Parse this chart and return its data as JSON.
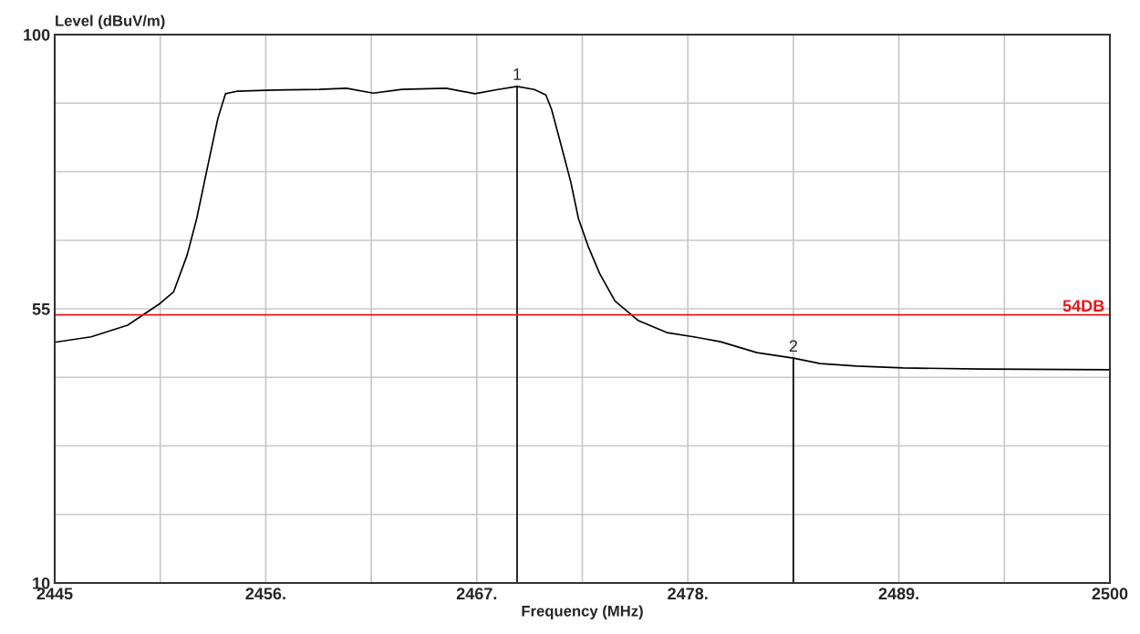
{
  "chart_data": {
    "type": "line",
    "xlabel": "Frequency (MHz)",
    "ylabel": "Level (dBuV/m)",
    "series": [
      {
        "color": "#000000",
        "x": [
          2445,
          2446.9,
          2448.8,
          2450.5,
          2451.2,
          2451.9,
          2452.4,
          2453.0,
          2453.5,
          2453.9,
          2454.5,
          2456.4,
          2458.8,
          2460.2,
          2461.6,
          2463.1,
          2465.4,
          2466.9,
          2468.1,
          2469.1,
          2470.0,
          2470.6,
          2470.9,
          2471.4,
          2471.9,
          2472.3,
          2472.8,
          2473.4,
          2474.2,
          2475.4,
          2476.9,
          2478.3,
          2479.7,
          2481.6,
          2483.5,
          2484.9,
          2486.8,
          2489.2,
          2493.3,
          2500
        ],
        "values": [
          49.5,
          50.4,
          52.3,
          55.9,
          57.8,
          63.8,
          69.8,
          78.8,
          86.2,
          90.3,
          90.7,
          90.9,
          91.0,
          91.2,
          90.4,
          91.0,
          91.2,
          90.3,
          91.0,
          91.5,
          91.0,
          90.1,
          87.7,
          81.8,
          75.8,
          69.8,
          65.3,
          60.8,
          56.3,
          53.1,
          51.1,
          50.4,
          49.6,
          47.8,
          46.9,
          46.0,
          45.6,
          45.3,
          45.1,
          45.0
        ]
      },
      {
        "color": "#000000",
        "x": [
          2469.1,
          2469.1
        ],
        "values": [
          10,
          91.5
        ]
      },
      {
        "color": "#000000",
        "x": [
          2483.5,
          2483.5
        ],
        "values": [
          10,
          46.9
        ]
      }
    ],
    "xlim": [
      2445,
      2500
    ],
    "xticks": [
      2445,
      {
        "value": 2450.5,
        "label": null
      },
      {
        "value": 2456,
        "label": "2456."
      },
      {
        "value": 2461.5,
        "label": null
      },
      {
        "value": 2467,
        "label": "2467."
      },
      {
        "value": 2472.5,
        "label": null
      },
      {
        "value": 2478,
        "label": "2478."
      },
      {
        "value": 2483.5,
        "label": null
      },
      {
        "value": 2489,
        "label": "2489."
      },
      {
        "value": 2494.5,
        "label": null
      },
      2500
    ],
    "ylim": [
      10,
      100
    ],
    "yticks": [
      10,
      {
        "value": 21.25,
        "label": null
      },
      {
        "value": 32.5,
        "label": null
      },
      {
        "value": 43.75,
        "label": null
      },
      55,
      {
        "value": 66.25,
        "label": null
      },
      {
        "value": 77.5,
        "label": null
      },
      {
        "value": 88.75,
        "label": null
      },
      100
    ],
    "ref_lines": [
      {
        "axis": "y",
        "value": 54,
        "label": "54DB",
        "color": "#e8161b"
      }
    ],
    "annotations": [
      {
        "text": "1",
        "x": 2469.1,
        "y": 91.5
      },
      {
        "text": "2",
        "x": 2483.5,
        "y": 46.9
      }
    ],
    "grid": true,
    "marker": "none",
    "line_style": "solid"
  }
}
